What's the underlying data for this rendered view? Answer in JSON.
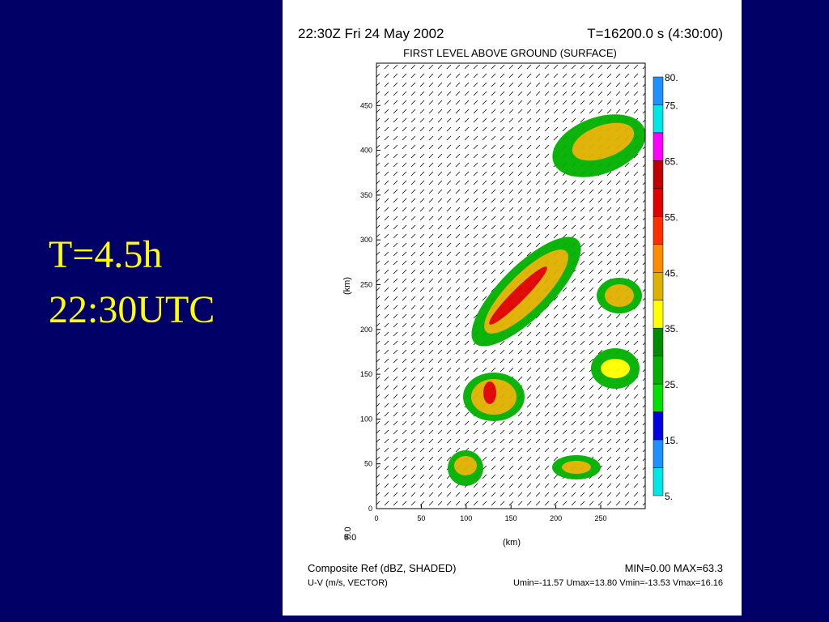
{
  "slide": {
    "caption_lines": [
      "T=4.5h",
      "22:30UTC"
    ]
  },
  "plot": {
    "header_left": "22:30Z Fri 24 May 2002",
    "header_right": "T=16200.0 s (4:30:00)",
    "subtitle": "FIRST LEVEL ABOVE GROUND (SURFACE)",
    "y_axis_label": "(km)",
    "x_axis_label": "(km)",
    "yticks": [
      "0",
      "50",
      "100",
      "150",
      "200",
      "250",
      "300",
      "350",
      "400",
      "450"
    ],
    "xticks": [
      "0",
      "50",
      "100",
      "150",
      "200",
      "250"
    ],
    "corner_labels": [
      "5.0",
      "5.0"
    ],
    "colorbar": {
      "labels": [
        "80.",
        "75.",
        "65.",
        "55.",
        "45.",
        "35.",
        "25.",
        "15.",
        "5."
      ],
      "colors": [
        "#1e90ff",
        "#00e5e5",
        "#ff00ff",
        "#c00000",
        "#e00000",
        "#ff3000",
        "#ff8c00",
        "#e0b000",
        "#ffff00",
        "#008c00",
        "#00b000",
        "#00e000",
        "#0000e0",
        "#1e90ff",
        "#00e5e5"
      ]
    },
    "footer": {
      "field_left": "Composite Ref (dBZ, SHADED)",
      "field_right": "MIN=0.00 MAX=63.3",
      "vector_left": "U-V (m/s, VECTOR)",
      "vector_right": "Umin=-11.57 Umax=13.80 Vmin=-13.53 Vmax=16.16"
    }
  }
}
